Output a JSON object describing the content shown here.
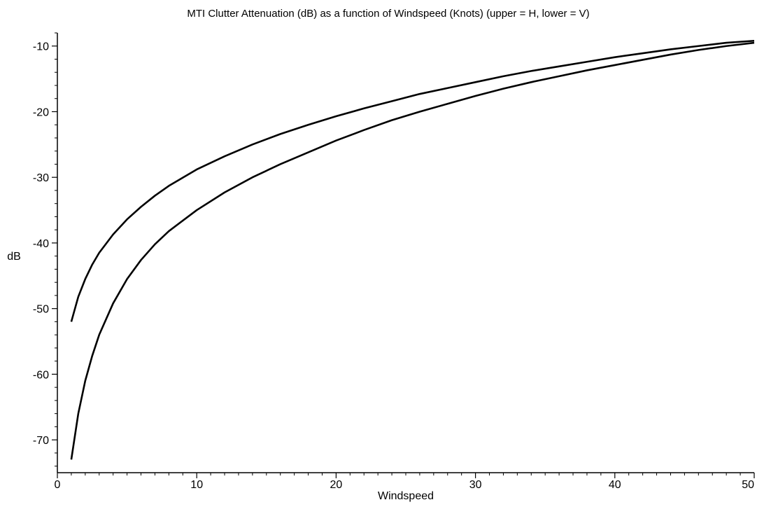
{
  "chart_data": {
    "type": "line",
    "title": "MTI Clutter Attenuation (dB) as a function of Windspeed (Knots) (upper = H, lower = V)",
    "xlabel": "Windspeed",
    "ylabel": "dB",
    "xlim": [
      0,
      50
    ],
    "ylim": [
      -75,
      -8
    ],
    "x_ticks": [
      0,
      10,
      20,
      30,
      40,
      50
    ],
    "y_ticks": [
      -10,
      -20,
      -30,
      -40,
      -50,
      -60,
      -70
    ],
    "x_tick_labels": [
      "0",
      "10",
      "20",
      "30",
      "40",
      "50"
    ],
    "y_tick_labels": [
      "-10",
      "-20",
      "-30",
      "-40",
      "-50",
      "-60",
      "-70"
    ],
    "grid": false,
    "legend": "none",
    "line_color": "#000000",
    "series": [
      {
        "x": [
          1,
          1.5,
          2,
          2.5,
          3,
          4,
          5,
          6,
          7,
          8,
          10,
          12,
          14,
          16,
          18,
          20,
          22,
          24,
          26,
          28,
          30,
          32,
          34,
          36,
          38,
          40,
          42,
          44,
          46,
          48,
          50
        ],
        "y": [
          -52.0,
          -48.2,
          -45.5,
          -43.3,
          -41.5,
          -38.7,
          -36.4,
          -34.5,
          -32.8,
          -31.3,
          -28.8,
          -26.8,
          -25.0,
          -23.4,
          -22.0,
          -20.7,
          -19.5,
          -18.4,
          -17.3,
          -16.4,
          -15.5,
          -14.6,
          -13.8,
          -13.1,
          -12.4,
          -11.7,
          -11.1,
          -10.5,
          -10.0,
          -9.5,
          -9.2
        ]
      },
      {
        "x": [
          1,
          1.5,
          2,
          2.5,
          3,
          4,
          5,
          6,
          7,
          8,
          10,
          12,
          14,
          16,
          18,
          20,
          22,
          24,
          26,
          28,
          30,
          32,
          34,
          36,
          38,
          40,
          42,
          44,
          46,
          48,
          50
        ],
        "y": [
          -73.0,
          -66.0,
          -61.0,
          -57.2,
          -54.0,
          -49.2,
          -45.5,
          -42.6,
          -40.2,
          -38.2,
          -35.0,
          -32.3,
          -30.0,
          -28.0,
          -26.2,
          -24.4,
          -22.8,
          -21.3,
          -20.0,
          -18.8,
          -17.6,
          -16.5,
          -15.5,
          -14.6,
          -13.7,
          -12.9,
          -12.1,
          -11.3,
          -10.6,
          -10.0,
          -9.5
        ]
      }
    ]
  }
}
